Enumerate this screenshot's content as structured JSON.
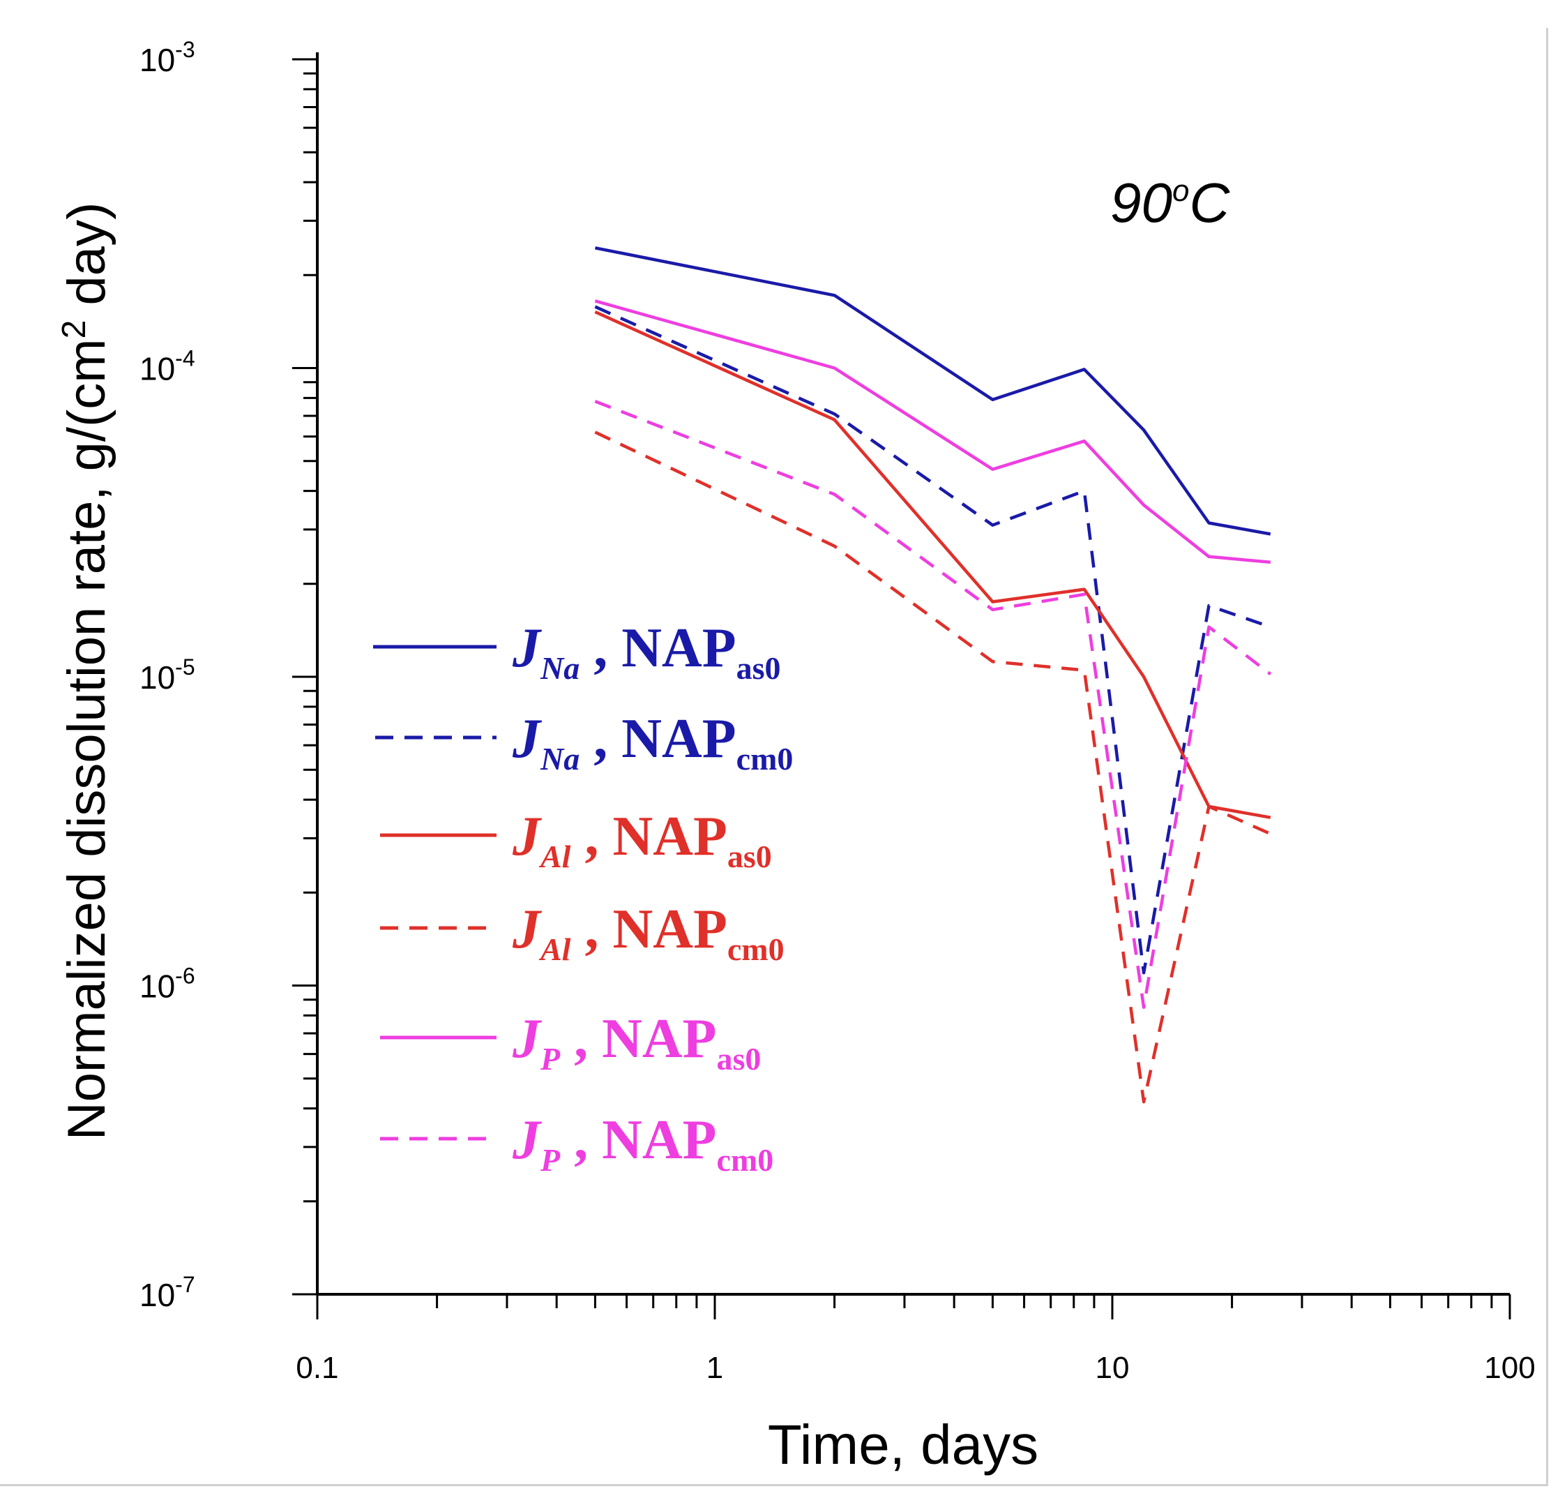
{
  "chart_data": {
    "type": "line",
    "x_scale": "log",
    "y_scale": "log",
    "xlabel": "Time, days",
    "ylabel": "Normalized dissolution rate, g/(cm² day)",
    "ylabel_parts": {
      "before": "Normalized dissolution rate, g/(cm",
      "sup": "2",
      "after": " day)"
    },
    "annotation": {
      "value": "90",
      "degree": "o",
      "unit": "C"
    },
    "xlim": [
      0.1,
      100
    ],
    "ylim": [
      1e-07,
      0.001
    ],
    "x_ticks": [
      {
        "value": 0.1,
        "label": "0.1"
      },
      {
        "value": 1,
        "label": "1"
      },
      {
        "value": 10,
        "label": "10"
      },
      {
        "value": 100,
        "label": "100"
      }
    ],
    "y_ticks": [
      {
        "value": 1e-07,
        "base": "10",
        "exp": "-7"
      },
      {
        "value": 1e-06,
        "base": "10",
        "exp": "-6"
      },
      {
        "value": 1e-05,
        "base": "10",
        "exp": "-5"
      },
      {
        "value": 0.0001,
        "base": "10",
        "exp": "-4"
      },
      {
        "value": 0.001,
        "base": "10",
        "exp": "-3"
      }
    ],
    "legend_position": "left-middle",
    "series": [
      {
        "name": "J_Na, NAP_as0",
        "symbol": "J",
        "symbol_sub": "Na",
        "sample": "NAP",
        "sample_sub": "as0",
        "color": "#1a1aa8",
        "dash": "solid",
        "x": [
          0.5,
          2,
          5,
          8.5,
          12,
          17.5,
          25
        ],
        "y": [
          0.000245,
          0.000172,
          7.9e-05,
          9.9e-05,
          6.3e-05,
          3.15e-05,
          2.9e-05
        ]
      },
      {
        "name": "J_Na, NAP_cm0",
        "symbol": "J",
        "symbol_sub": "Na",
        "sample": "NAP",
        "sample_sub": "cm0",
        "color": "#1a1aa8",
        "dash": "dashed",
        "x": [
          0.5,
          2,
          5,
          8.5,
          12,
          17.5,
          25
        ],
        "y": [
          0.000158,
          7.1e-05,
          3.1e-05,
          4e-05,
          1.1e-06,
          1.7e-05,
          1.45e-05
        ]
      },
      {
        "name": "J_Al, NAP_as0",
        "symbol": "J",
        "symbol_sub": "Al",
        "sample": "NAP",
        "sample_sub": "as0",
        "color": "#e0302a",
        "dash": "solid",
        "x": [
          0.5,
          2,
          5,
          8.5,
          12,
          17.5,
          25
        ],
        "y": [
          0.000152,
          6.8e-05,
          1.75e-05,
          1.92e-05,
          1e-05,
          3.8e-06,
          3.5e-06
        ]
      },
      {
        "name": "J_Al, NAP_cm0",
        "symbol": "J",
        "symbol_sub": "Al",
        "sample": "NAP",
        "sample_sub": "cm0",
        "color": "#e0302a",
        "dash": "dashed",
        "x": [
          0.5,
          2,
          5,
          8.5,
          12,
          17.5,
          25
        ],
        "y": [
          6.2e-05,
          2.65e-05,
          1.12e-05,
          1.05e-05,
          4.2e-07,
          3.8e-06,
          3.1e-06
        ]
      },
      {
        "name": "J_P, NAP_as0",
        "symbol": "J",
        "symbol_sub": "P",
        "sample": "NAP",
        "sample_sub": "as0",
        "color": "#ee3ee0",
        "dash": "solid",
        "x": [
          0.5,
          2,
          5,
          8.5,
          12,
          17.5,
          25
        ],
        "y": [
          0.000165,
          0.0001,
          4.7e-05,
          5.8e-05,
          3.6e-05,
          2.45e-05,
          2.35e-05
        ]
      },
      {
        "name": "J_P, NAP_cm0",
        "symbol": "J",
        "symbol_sub": "P",
        "sample": "NAP",
        "sample_sub": "cm0",
        "color": "#ee3ee0",
        "dash": "dashed",
        "x": [
          0.5,
          2,
          5,
          8.5,
          12,
          17.5,
          25
        ],
        "y": [
          7.8e-05,
          3.9e-05,
          1.65e-05,
          1.85e-05,
          8.5e-07,
          1.45e-05,
          1.02e-05
        ]
      }
    ]
  }
}
